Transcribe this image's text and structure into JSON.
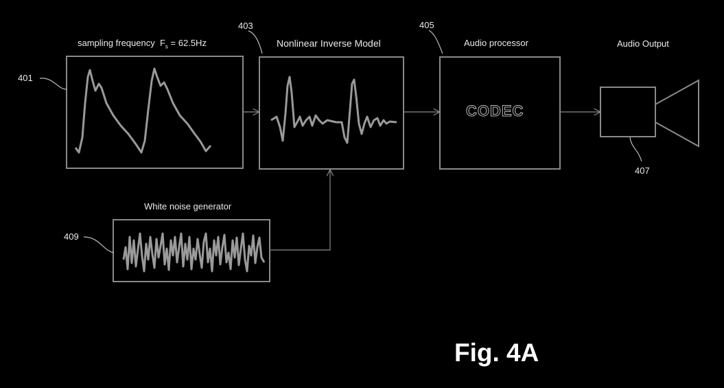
{
  "labels": {
    "sampling": "sampling frequency",
    "fs_symbol": "F",
    "fs_sub": "s",
    "fs_value": "= 62.5Hz",
    "inverse_model": "Nonlinear Inverse Model",
    "audio_processor": "Audio processor",
    "audio_output": "Audio Output",
    "white_noise": "White noise generator",
    "codec": "CODEC"
  },
  "refs": {
    "r401": "401",
    "r403": "403",
    "r405": "405",
    "r407": "407",
    "r409": "409"
  },
  "figure": "Fig. 4A"
}
